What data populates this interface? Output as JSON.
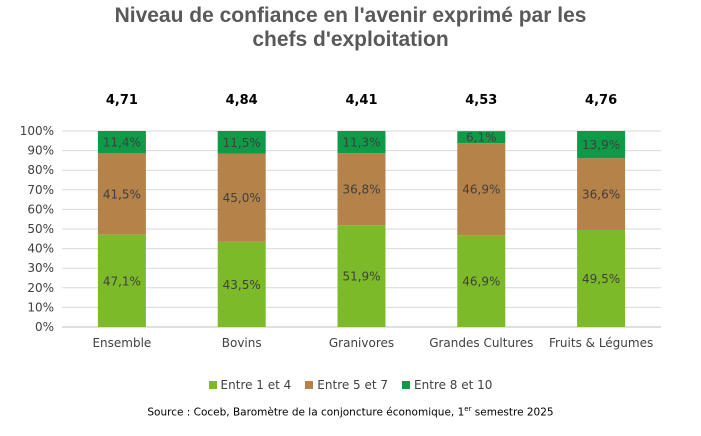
{
  "title_line1": "Niveau de confiance en l'avenir exprimé par les",
  "title_line2": "chefs d'exploitation",
  "source": {
    "prefix": "Source : Coceb, Baromètre de la conjoncture économique, 1",
    "sup": "er",
    "suffix": " semestre 2025"
  },
  "chart_data": {
    "type": "bar",
    "stacked": true,
    "title": "Niveau de confiance en l'avenir exprimé par les chefs d'exploitation",
    "categories": [
      "Ensemble",
      "Bovins",
      "Granivores",
      "Grandes Cultures",
      "Fruits & Légumes"
    ],
    "scores": [
      "4,71",
      "4,84",
      "4,41",
      "4,53",
      "4,76"
    ],
    "series": [
      {
        "name": "Entre 1 et 4",
        "color": "#7dba2a",
        "values": [
          47.1,
          43.5,
          51.9,
          46.9,
          49.5
        ],
        "labels": [
          "47,1%",
          "43,5%",
          "51,9%",
          "46,9%",
          "49,5%"
        ]
      },
      {
        "name": "Entre 5 et 7",
        "color": "#b5824a",
        "values": [
          41.5,
          45.0,
          36.8,
          46.9,
          36.6
        ],
        "labels": [
          "41,5%",
          "45,0%",
          "36,8%",
          "46,9%",
          "36,6%"
        ]
      },
      {
        "name": "Entre 8 et 10",
        "color": "#0f9a48",
        "values": [
          11.4,
          11.5,
          11.3,
          6.1,
          13.9
        ],
        "labels": [
          "11,4%",
          "11,5%",
          "11,3%",
          "6,1%",
          "13,9%"
        ]
      }
    ],
    "yticks": [
      "0%",
      "10%",
      "20%",
      "30%",
      "40%",
      "50%",
      "60%",
      "70%",
      "80%",
      "90%",
      "100%"
    ],
    "ylim": [
      0,
      100
    ],
    "grid": true,
    "legend": "bottom"
  }
}
